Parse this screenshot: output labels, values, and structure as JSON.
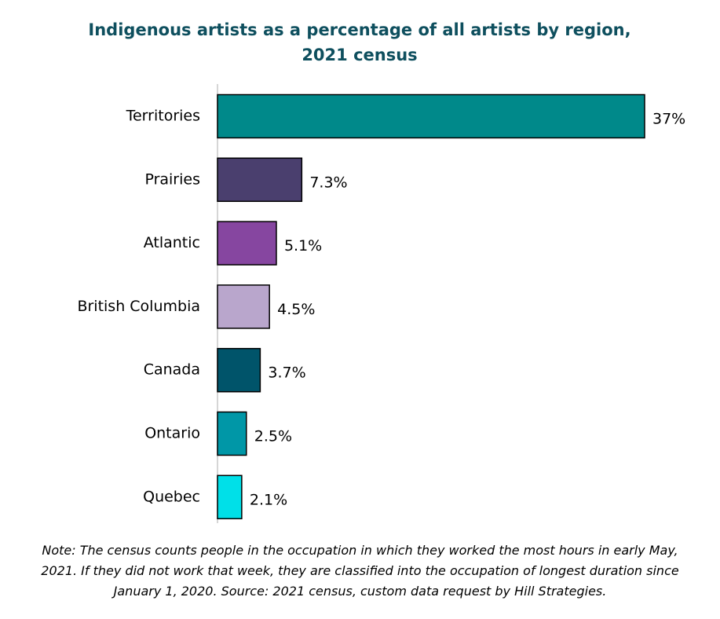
{
  "chart_data": {
    "type": "bar",
    "orientation": "horizontal",
    "title": "Indigenous artists as a percentage of all artists by region, 2021 census",
    "categories": [
      "Territories",
      "Prairies",
      "Atlantic",
      "British Columbia",
      "Canada",
      "Ontario",
      "Quebec"
    ],
    "values": [
      37,
      7.3,
      5.1,
      4.5,
      3.7,
      2.5,
      2.1
    ],
    "value_labels": [
      "37%",
      "7.3%",
      "5.1%",
      "4.5%",
      "3.7%",
      "2.5%",
      "2.1%"
    ],
    "colors": [
      "#00898a",
      "#4a3f6e",
      "#8646a0",
      "#b9a6cc",
      "#00546a",
      "#0097a7",
      "#00e0e8"
    ],
    "note": "Note: The census counts people in the occupation in which they worked the most hours in early May, 2021. If they did not work that week, they are classified into the occupation of longest duration since January 1, 2020. Source: 2021 census, custom data request by Hill Strategies."
  }
}
